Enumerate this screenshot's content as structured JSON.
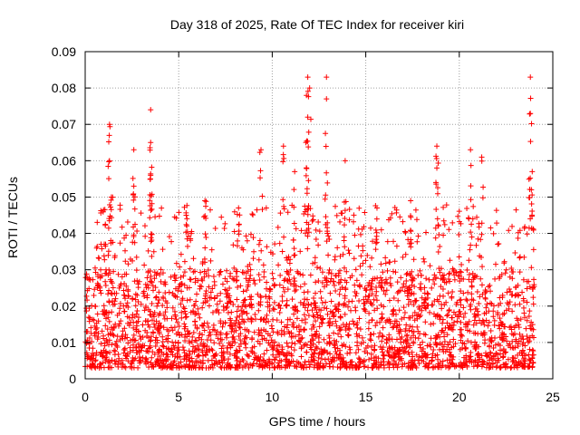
{
  "chart_data": {
    "type": "scatter",
    "title": "Day 318 of 2025, Rate Of TEC Index for receiver kiri",
    "xlabel": "GPS time / hours",
    "ylabel": "ROTI / TECUs",
    "xlim": [
      0,
      25
    ],
    "ylim": [
      0,
      0.09
    ],
    "xticks": [
      "0",
      "5",
      "10",
      "15",
      "20",
      "25"
    ],
    "yticks": [
      "0",
      "0.01",
      "0.02",
      "0.03",
      "0.04",
      "0.05",
      "0.06",
      "0.07",
      "0.08",
      "0.09"
    ],
    "grid": true,
    "marker": "+",
    "color": "#ff0000",
    "series": [
      {
        "name": "ROTI",
        "x_range": [
          0,
          24
        ],
        "base_band": [
          0.003,
          0.03
        ],
        "peaks": [
          {
            "x": 1.3,
            "y": 0.07
          },
          {
            "x": 1.3,
            "y": 0.06
          },
          {
            "x": 1.4,
            "y": 0.05
          },
          {
            "x": 2.6,
            "y": 0.063
          },
          {
            "x": 2.6,
            "y": 0.053
          },
          {
            "x": 3.5,
            "y": 0.074
          },
          {
            "x": 3.5,
            "y": 0.065
          },
          {
            "x": 3.5,
            "y": 0.056
          },
          {
            "x": 5.4,
            "y": 0.045
          },
          {
            "x": 6.4,
            "y": 0.049
          },
          {
            "x": 8.2,
            "y": 0.047
          },
          {
            "x": 9.4,
            "y": 0.063
          },
          {
            "x": 10.6,
            "y": 0.064
          },
          {
            "x": 11.2,
            "y": 0.057
          },
          {
            "x": 11.9,
            "y": 0.083
          },
          {
            "x": 12.0,
            "y": 0.08
          },
          {
            "x": 11.9,
            "y": 0.072
          },
          {
            "x": 11.8,
            "y": 0.065
          },
          {
            "x": 12.9,
            "y": 0.083
          },
          {
            "x": 12.9,
            "y": 0.077
          },
          {
            "x": 13.9,
            "y": 0.06
          },
          {
            "x": 15.6,
            "y": 0.047
          },
          {
            "x": 17.4,
            "y": 0.049
          },
          {
            "x": 18.8,
            "y": 0.064
          },
          {
            "x": 18.8,
            "y": 0.058
          },
          {
            "x": 20.6,
            "y": 0.063
          },
          {
            "x": 21.2,
            "y": 0.061
          },
          {
            "x": 23.8,
            "y": 0.083
          },
          {
            "x": 23.8,
            "y": 0.073
          },
          {
            "x": 23.9,
            "y": 0.057
          }
        ]
      }
    ]
  }
}
